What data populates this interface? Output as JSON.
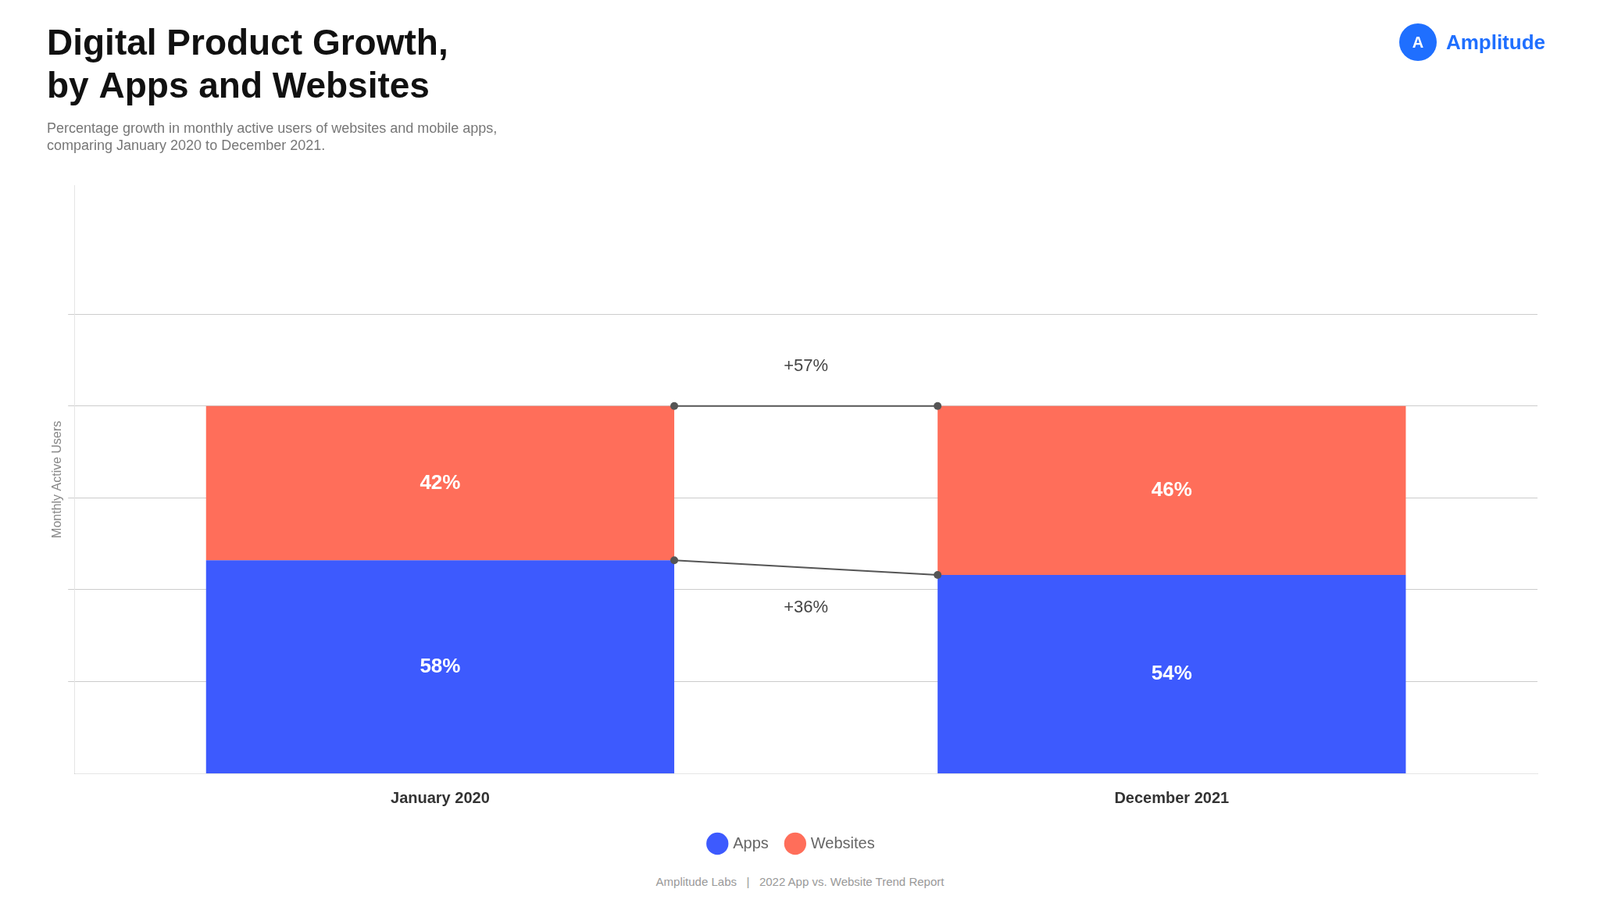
{
  "chart_data": {
    "type": "bar",
    "title": [
      "Digital Product Growth,",
      "by Apps and Websites"
    ],
    "subtitle": [
      "Percentage growth in monthly active users of websites and mobile apps,",
      "comparing January 2020 to December 2021."
    ],
    "ylabel": "Monthly Active Users",
    "categories": [
      "January 2020",
      "December 2021"
    ],
    "series": [
      {
        "name": "Apps",
        "color": "#3D5AFE",
        "values": [
          58,
          54
        ],
        "value_labels": [
          "58%",
          "54%"
        ]
      },
      {
        "name": "Websites",
        "color": "#FF6E5A",
        "values": [
          42,
          46
        ],
        "value_labels": [
          "42%",
          "46%"
        ]
      }
    ],
    "stacked": true,
    "data_labels": true,
    "ylim": [
      0,
      160
    ],
    "yticks": [
      25,
      50,
      75,
      100,
      125
    ],
    "tick_labels": "x",
    "grid": true,
    "legend": "bottom",
    "annotations": [
      {
        "text": "+57%",
        "series": "Websites"
      },
      {
        "text": "+36%",
        "series": "Apps"
      }
    ],
    "logo": [
      "A",
      "Amplitude"
    ],
    "footer": "Amplitude Labs   |   2022 App vs. Website Trend Report"
  }
}
